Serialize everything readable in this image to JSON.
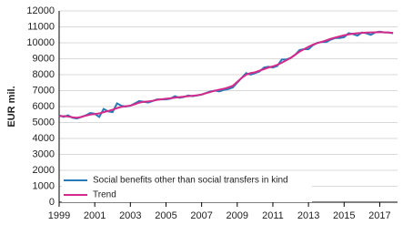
{
  "chart_data": {
    "type": "line",
    "y_label": "EUR mil.",
    "x": [
      1999,
      1999.25,
      1999.5,
      1999.75,
      2000,
      2000.25,
      2000.5,
      2000.75,
      2001,
      2001.25,
      2001.5,
      2001.75,
      2002,
      2002.25,
      2002.5,
      2002.75,
      2003,
      2003.25,
      2003.5,
      2003.75,
      2004,
      2004.25,
      2004.5,
      2004.75,
      2005,
      2005.25,
      2005.5,
      2005.75,
      2006,
      2006.25,
      2006.5,
      2006.75,
      2007,
      2007.25,
      2007.5,
      2007.75,
      2008,
      2008.25,
      2008.5,
      2008.75,
      2009,
      2009.25,
      2009.5,
      2009.75,
      2010,
      2010.25,
      2010.5,
      2010.75,
      2011,
      2011.25,
      2011.5,
      2011.75,
      2012,
      2012.25,
      2012.5,
      2012.75,
      2013,
      2013.25,
      2013.5,
      2013.75,
      2014,
      2014.25,
      2014.5,
      2014.75,
      2015,
      2015.25,
      2015.5,
      2015.75,
      2016,
      2016.25,
      2016.5,
      2016.75,
      2017,
      2017.25,
      2017.5,
      2017.75
    ],
    "series": [
      {
        "name": "Social benefits other than social transfers in kind",
        "color": "#2a7ab8",
        "values": [
          5450,
          5350,
          5450,
          5300,
          5250,
          5350,
          5450,
          5600,
          5550,
          5350,
          5850,
          5700,
          5650,
          6200,
          6050,
          6000,
          6050,
          6200,
          6350,
          6300,
          6250,
          6350,
          6450,
          6450,
          6450,
          6500,
          6650,
          6550,
          6600,
          6700,
          6650,
          6700,
          6750,
          6850,
          6950,
          7000,
          6950,
          7050,
          7100,
          7200,
          7500,
          7800,
          8100,
          8000,
          8100,
          8200,
          8450,
          8500,
          8450,
          8550,
          8950,
          8950,
          9050,
          9250,
          9550,
          9600,
          9600,
          9850,
          10000,
          10050,
          10050,
          10200,
          10300,
          10300,
          10350,
          10600,
          10550,
          10450,
          10650,
          10600,
          10500,
          10650,
          10700,
          10650,
          10650,
          10600
        ]
      },
      {
        "name": "Trend",
        "color": "#d42a8c",
        "values": [
          5400,
          5400,
          5380,
          5330,
          5300,
          5350,
          5430,
          5500,
          5530,
          5570,
          5650,
          5720,
          5800,
          5900,
          5980,
          6020,
          6060,
          6150,
          6250,
          6300,
          6320,
          6360,
          6420,
          6460,
          6490,
          6520,
          6560,
          6590,
          6620,
          6650,
          6680,
          6710,
          6760,
          6840,
          6920,
          7000,
          7060,
          7120,
          7200,
          7300,
          7550,
          7800,
          8000,
          8100,
          8150,
          8250,
          8350,
          8450,
          8520,
          8620,
          8750,
          8900,
          9050,
          9250,
          9450,
          9600,
          9750,
          9880,
          9980,
          10060,
          10150,
          10250,
          10330,
          10400,
          10470,
          10530,
          10570,
          10600,
          10620,
          10640,
          10650,
          10660,
          10670,
          10660,
          10640,
          10620
        ]
      }
    ],
    "xlim": [
      1999,
      2018
    ],
    "xticks": [
      1999,
      2001,
      2003,
      2005,
      2007,
      2009,
      2011,
      2013,
      2015,
      2017
    ],
    "ylim": [
      0,
      12000
    ],
    "yticks": [
      0,
      1000,
      2000,
      3000,
      4000,
      5000,
      6000,
      7000,
      8000,
      9000,
      10000,
      11000,
      12000
    ],
    "grid": true,
    "legend": "lower-left"
  }
}
